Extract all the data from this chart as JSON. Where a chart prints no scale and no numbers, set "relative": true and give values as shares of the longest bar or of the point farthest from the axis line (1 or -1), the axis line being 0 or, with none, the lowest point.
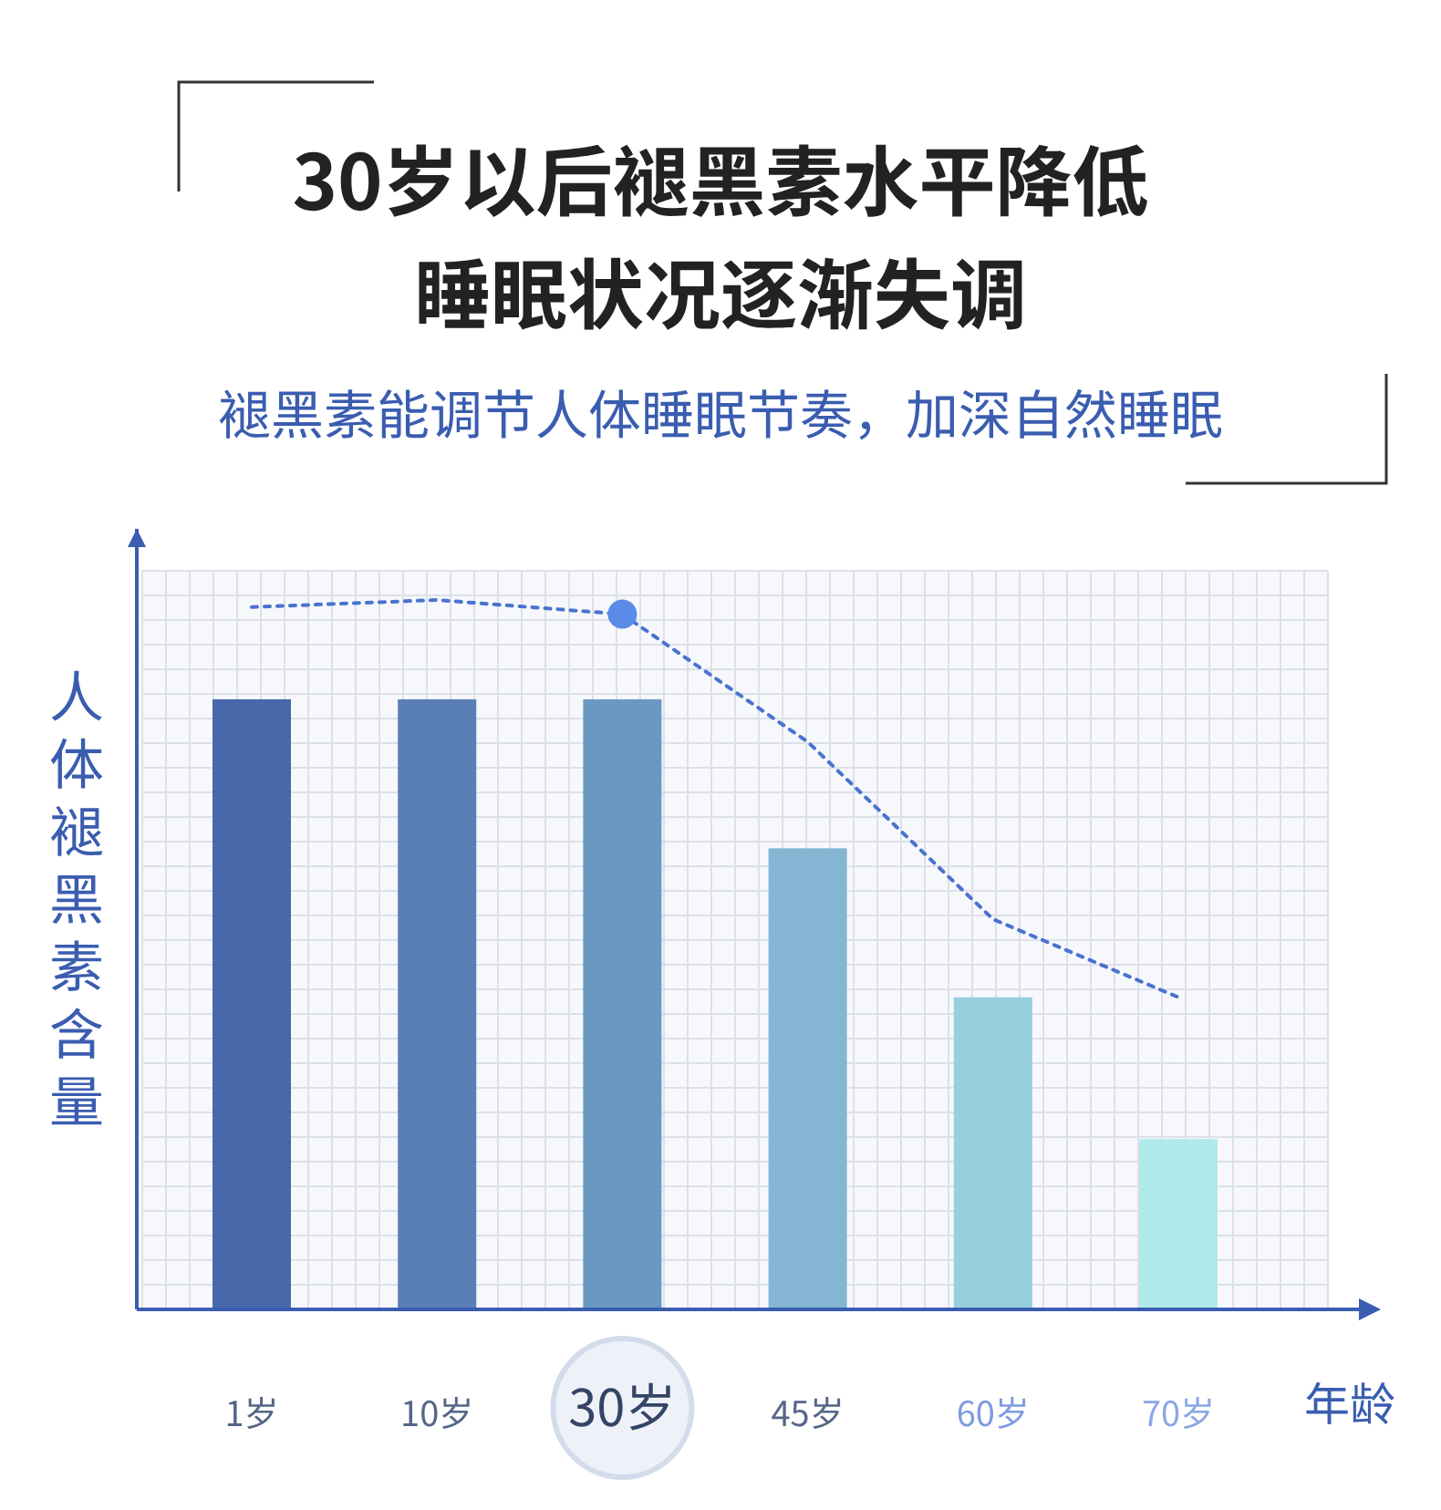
{
  "chart_data": {
    "type": "bar",
    "title": "30岁以后褪黑素水平降低睡眠状况逐渐失调",
    "subtitle": "褪黑素能调节人体睡眠节奏，加深自然睡眠",
    "xlabel": "年龄",
    "ylabel": "人体褪黑素含量",
    "categories": [
      "1岁",
      "10岁",
      "30岁",
      "45岁",
      "60岁",
      "70岁"
    ],
    "relative": true,
    "grid": true,
    "series": [
      {
        "colors": [
          "#4868a9",
          "#5a7fb6",
          "#6b98c3",
          "#84b5d3",
          "#98cfdf",
          "#aeeaea"
        ],
        "values": [
          0.86,
          0.86,
          0.86,
          0.65,
          0.44,
          0.24
        ]
      },
      {
        "type": "line",
        "color": "#4a72d0",
        "line_style": "dotted",
        "marker": "none",
        "values": [
          0.99,
          1.0,
          0.98,
          0.8,
          0.55,
          0.44
        ]
      },
      {
        "type": "scatter",
        "color": "#5b8be8",
        "marker": "circle",
        "x": [
          "30岁"
        ],
        "values": [
          0.98
        ]
      }
    ]
  }
}
